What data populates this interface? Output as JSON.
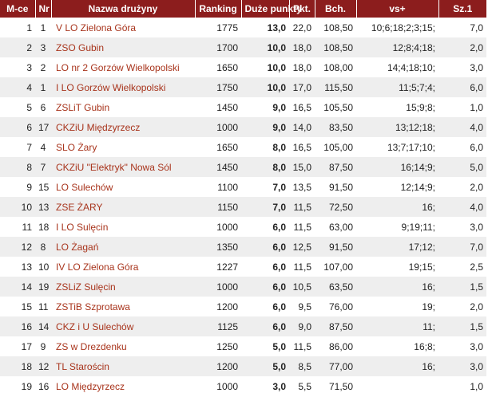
{
  "table": {
    "headers": [
      "M-ce",
      "Nr",
      "Nazwa drużyny",
      "Ranking",
      "Duże punkty",
      "Pkt.",
      "Bch.",
      "vs+",
      "Sz.1"
    ],
    "rows": [
      [
        "1",
        "1",
        "V LO Zielona Góra",
        "1775",
        "13,0",
        "22,0",
        "108,50",
        "10;6;18;2;3;15;",
        "7,0"
      ],
      [
        "2",
        "3",
        "ZSO Gubin",
        "1700",
        "10,0",
        "18,0",
        "108,50",
        "12;8;4;18;",
        "2,0"
      ],
      [
        "3",
        "2",
        "LO nr 2 Gorzów Wielkopolski",
        "1650",
        "10,0",
        "18,0",
        "108,00",
        "14;4;18;10;",
        "3,0"
      ],
      [
        "4",
        "1",
        "I LO Gorzów Wielkopolski",
        "1750",
        "10,0",
        "17,0",
        "115,50",
        "11;5;7;4;",
        "6,0"
      ],
      [
        "5",
        "6",
        "ZSLiT Gubin",
        "1450",
        "9,0",
        "16,5",
        "105,50",
        "15;9;8;",
        "1,0"
      ],
      [
        "6",
        "17",
        "CKZiU Międzyrzecz",
        "1000",
        "9,0",
        "14,0",
        "83,50",
        "13;12;18;",
        "4,0"
      ],
      [
        "7",
        "4",
        "SLO Żary",
        "1650",
        "8,0",
        "16,5",
        "105,00",
        "13;7;17;10;",
        "6,0"
      ],
      [
        "8",
        "7",
        "CKZiU \"Elektryk\" Nowa Sól",
        "1450",
        "8,0",
        "15,0",
        "87,50",
        "16;14;9;",
        "5,0"
      ],
      [
        "9",
        "15",
        "LO Sulechów",
        "1100",
        "7,0",
        "13,5",
        "91,50",
        "12;14;9;",
        "2,0"
      ],
      [
        "10",
        "13",
        "ZSE ŻARY",
        "1150",
        "7,0",
        "11,5",
        "72,50",
        "16;",
        "4,0"
      ],
      [
        "11",
        "18",
        "I LO Sulęcin",
        "1000",
        "6,0",
        "11,5",
        "63,00",
        "9;19;11;",
        "3,0"
      ],
      [
        "12",
        "8",
        "LO Żagań",
        "1350",
        "6,0",
        "12,5",
        "91,50",
        "17;12;",
        "7,0"
      ],
      [
        "13",
        "10",
        "IV LO Zielona Góra",
        "1227",
        "6,0",
        "11,5",
        "107,00",
        "19;15;",
        "2,5"
      ],
      [
        "14",
        "19",
        "ZSLiZ Sulęcin",
        "1000",
        "6,0",
        "10,5",
        "63,50",
        "16;",
        "1,5"
      ],
      [
        "15",
        "11",
        "ZSTiB Szprotawa",
        "1200",
        "6,0",
        "9,5",
        "76,00",
        "19;",
        "2,0"
      ],
      [
        "16",
        "14",
        "CKZ i U Sulechów",
        "1125",
        "6,0",
        "9,0",
        "87,50",
        "11;",
        "1,5"
      ],
      [
        "17",
        "9",
        "ZS w Drezdenku",
        "1250",
        "5,0",
        "11,5",
        "86,00",
        "16;8;",
        "3,0"
      ],
      [
        "18",
        "12",
        "TL Starościn",
        "1200",
        "5,0",
        "8,5",
        "77,00",
        "16;",
        "3,0"
      ],
      [
        "19",
        "16",
        "LO Międzyrzecz",
        "1000",
        "3,0",
        "5,5",
        "71,50",
        null,
        "1,0"
      ]
    ]
  }
}
